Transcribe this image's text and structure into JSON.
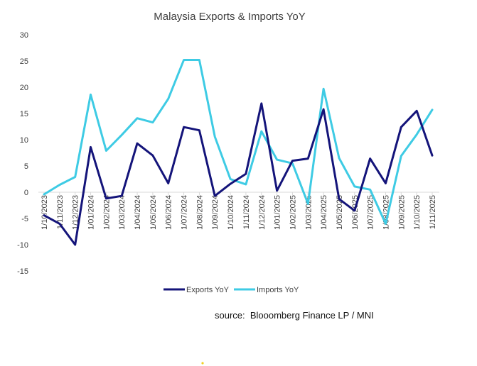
{
  "source_text": "source:  Blooomberg Finance LP / MNI",
  "colors": {
    "exports": "#14147a",
    "imports": "#3ecbe4",
    "axis": "#d9d9d9",
    "dot": "#f2d024"
  },
  "chart_data": {
    "type": "line",
    "title": "Malaysia Exports & Imports YoY",
    "xlabel": "",
    "ylabel": "",
    "ylim": [
      -15,
      30
    ],
    "yticks": [
      30,
      25,
      20,
      15,
      10,
      5,
      0,
      -5,
      -10,
      -15
    ],
    "grid": false,
    "legend": "bottom",
    "categories": [
      "1/10/2023",
      "1/11/2023",
      "1/12/2023",
      "1/01/2024",
      "1/02/2024",
      "1/03/2024",
      "1/04/2024",
      "1/05/2024",
      "1/06/2024",
      "1/07/2024",
      "1/08/2024",
      "1/09/2024",
      "1/10/2024",
      "1/11/2024",
      "1/12/2024",
      "1/01/2025",
      "1/02/2025",
      "1/03/2025",
      "1/04/2025",
      "1/05/2025",
      "1/06/2025",
      "1/07/2025",
      "1/08/2025",
      "1/09/2025",
      "1/10/2025",
      "1/11/2025"
    ],
    "series": [
      {
        "name": "Exports YoY",
        "color_key": "exports",
        "values": [
          -4.4,
          -6.0,
          -10.0,
          8.6,
          -1.2,
          -0.7,
          9.3,
          7.0,
          1.7,
          12.4,
          11.8,
          -0.7,
          1.6,
          3.5,
          16.9,
          0.3,
          6.0,
          6.4,
          15.8,
          -1.3,
          -3.5,
          6.4,
          1.7,
          12.4,
          15.5,
          7.0
        ]
      },
      {
        "name": "Imports YoY",
        "color_key": "imports",
        "values": [
          -0.4,
          1.4,
          2.9,
          18.6,
          7.9,
          10.9,
          14.1,
          13.3,
          17.8,
          25.2,
          25.2,
          10.6,
          2.5,
          1.5,
          11.6,
          6.2,
          5.5,
          -2.2,
          19.7,
          6.5,
          1.1,
          0.5,
          -6.0,
          6.9,
          11.0,
          15.7
        ]
      }
    ]
  }
}
